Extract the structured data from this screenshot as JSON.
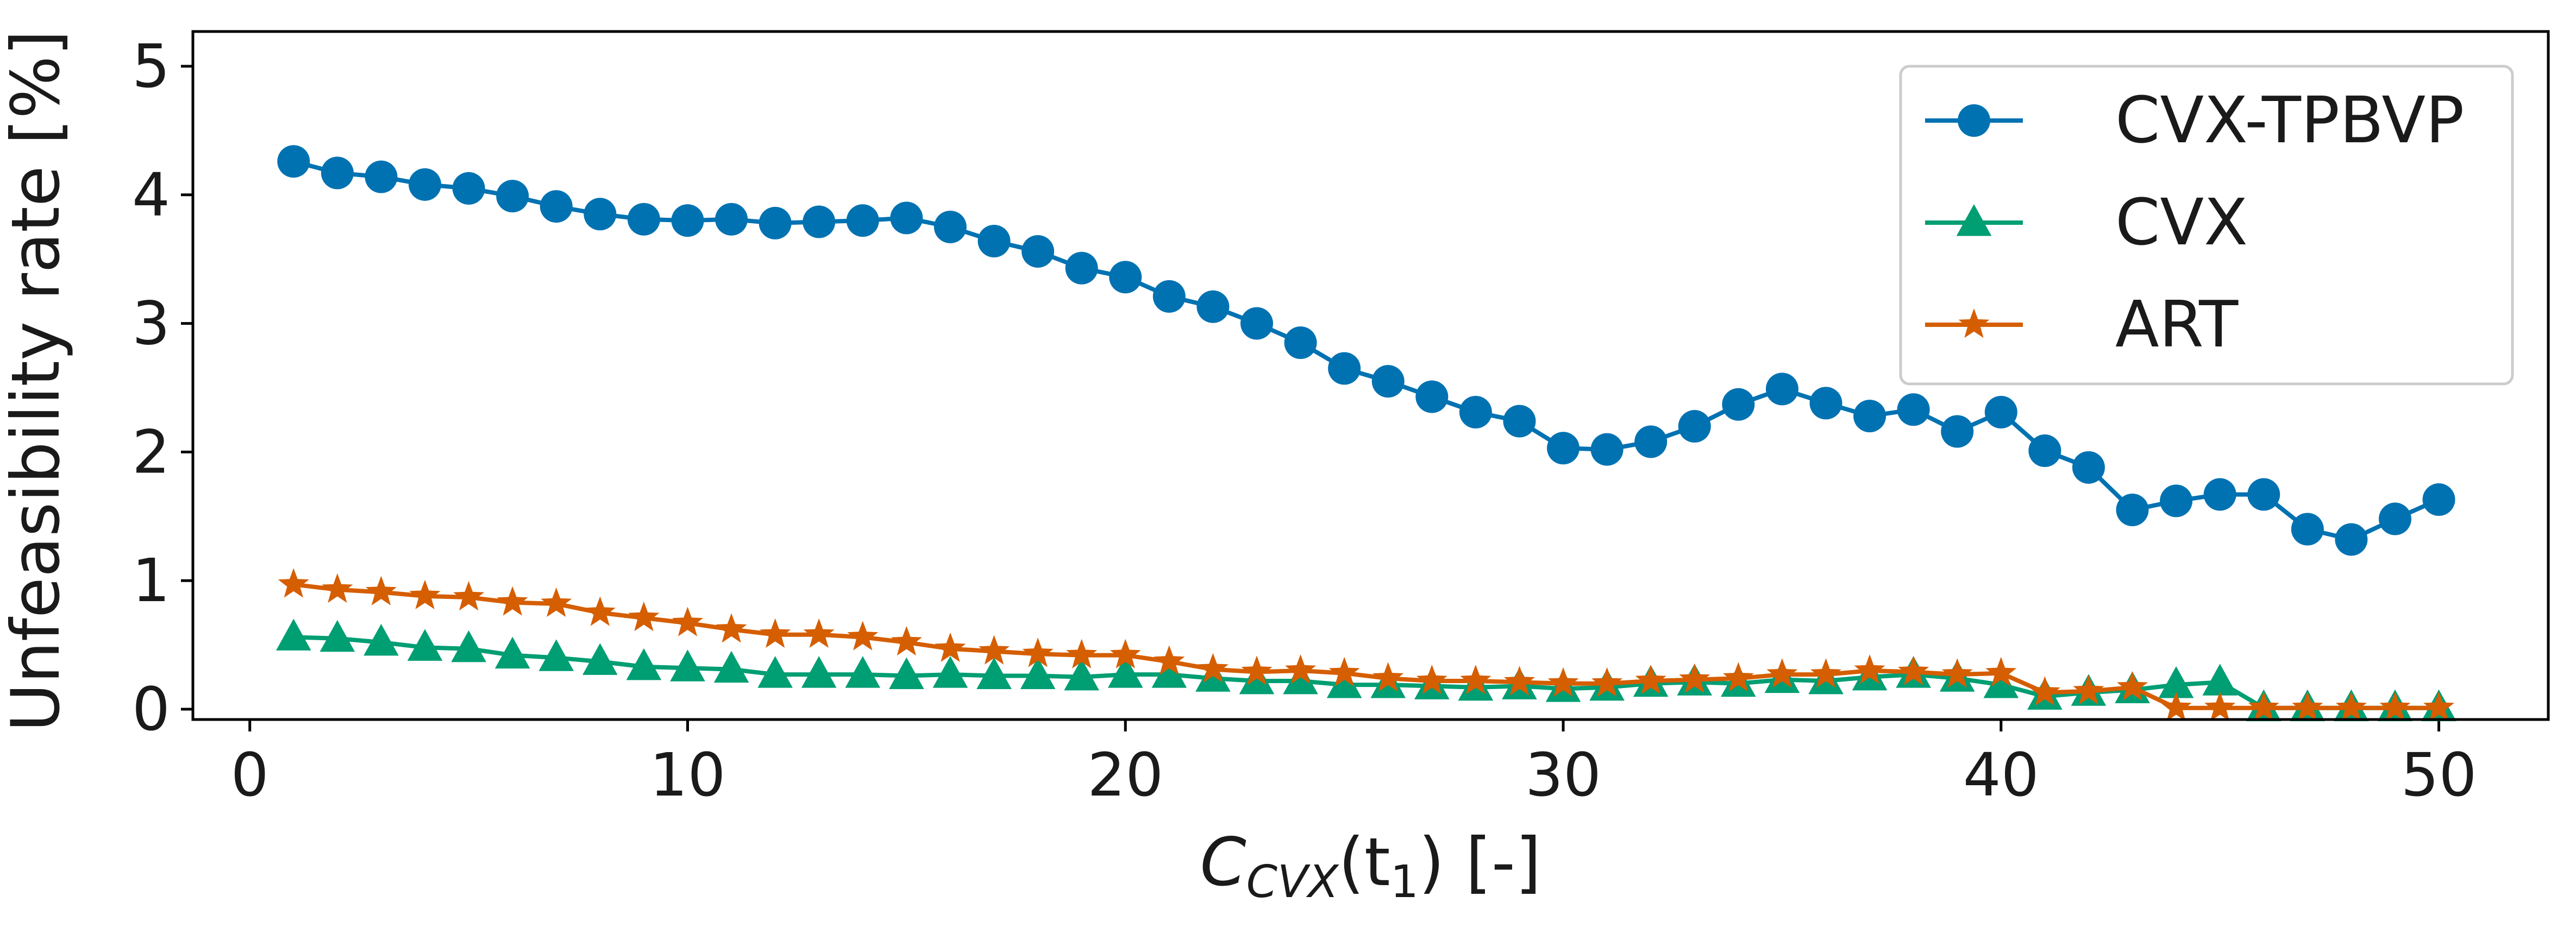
{
  "chart_data": {
    "type": "line",
    "xlabel_main": "C",
    "xlabel_sub": "CVX",
    "xlabel_arg": "(t",
    "xlabel_arg_sub": "1",
    "xlabel_tail": ") [-]",
    "ylabel": "Unfeasibility rate [%]",
    "xlim": [
      -1.3,
      52.5
    ],
    "ylim": [
      -0.08,
      5.27
    ],
    "xticks": [
      0,
      10,
      20,
      30,
      40,
      50
    ],
    "yticks": [
      0,
      1,
      2,
      3,
      4,
      5
    ],
    "legend_position": "top-right",
    "x": [
      1,
      2,
      3,
      4,
      5,
      6,
      7,
      8,
      9,
      10,
      11,
      12,
      13,
      14,
      15,
      16,
      17,
      18,
      19,
      20,
      21,
      22,
      23,
      24,
      25,
      26,
      27,
      28,
      29,
      30,
      31,
      32,
      33,
      34,
      35,
      36,
      37,
      38,
      39,
      40,
      41,
      42,
      43,
      44,
      45,
      46,
      47,
      48,
      49,
      50
    ],
    "series": [
      {
        "name": "CVX-TPBVP",
        "color": "#0072b2",
        "marker": "circle",
        "values": [
          4.26,
          4.17,
          4.14,
          4.08,
          4.05,
          3.99,
          3.91,
          3.85,
          3.81,
          3.8,
          3.81,
          3.78,
          3.79,
          3.8,
          3.82,
          3.75,
          3.64,
          3.56,
          3.43,
          3.36,
          3.21,
          3.13,
          3.0,
          2.85,
          2.65,
          2.55,
          2.43,
          2.31,
          2.24,
          2.03,
          2.02,
          2.08,
          2.2,
          2.37,
          2.49,
          2.38,
          2.28,
          2.33,
          2.16,
          2.31,
          2.01,
          1.88,
          1.55,
          1.62,
          1.67,
          1.67,
          1.4,
          1.32,
          1.48,
          1.63
        ]
      },
      {
        "name": "CVX",
        "color": "#009e73",
        "marker": "triangle",
        "values": [
          0.56,
          0.55,
          0.52,
          0.48,
          0.47,
          0.42,
          0.4,
          0.37,
          0.33,
          0.32,
          0.31,
          0.27,
          0.27,
          0.27,
          0.26,
          0.27,
          0.26,
          0.26,
          0.25,
          0.27,
          0.27,
          0.24,
          0.22,
          0.22,
          0.19,
          0.19,
          0.18,
          0.17,
          0.18,
          0.16,
          0.17,
          0.2,
          0.21,
          0.2,
          0.23,
          0.22,
          0.25,
          0.27,
          0.24,
          0.19,
          0.1,
          0.13,
          0.15,
          0.19,
          0.21,
          0.01,
          0.01,
          0.01,
          0.01,
          0.01
        ]
      },
      {
        "name": "ART",
        "color": "#d55e00",
        "marker": "star",
        "values": [
          0.97,
          0.93,
          0.91,
          0.88,
          0.87,
          0.83,
          0.82,
          0.75,
          0.71,
          0.67,
          0.62,
          0.58,
          0.58,
          0.56,
          0.52,
          0.47,
          0.45,
          0.43,
          0.42,
          0.42,
          0.37,
          0.31,
          0.29,
          0.3,
          0.28,
          0.24,
          0.22,
          0.22,
          0.21,
          0.2,
          0.2,
          0.22,
          0.23,
          0.24,
          0.27,
          0.27,
          0.3,
          0.29,
          0.27,
          0.28,
          0.13,
          0.14,
          0.17,
          0.01,
          0.01,
          0.01,
          0.01,
          0.01,
          0.01,
          0.01
        ]
      }
    ]
  }
}
